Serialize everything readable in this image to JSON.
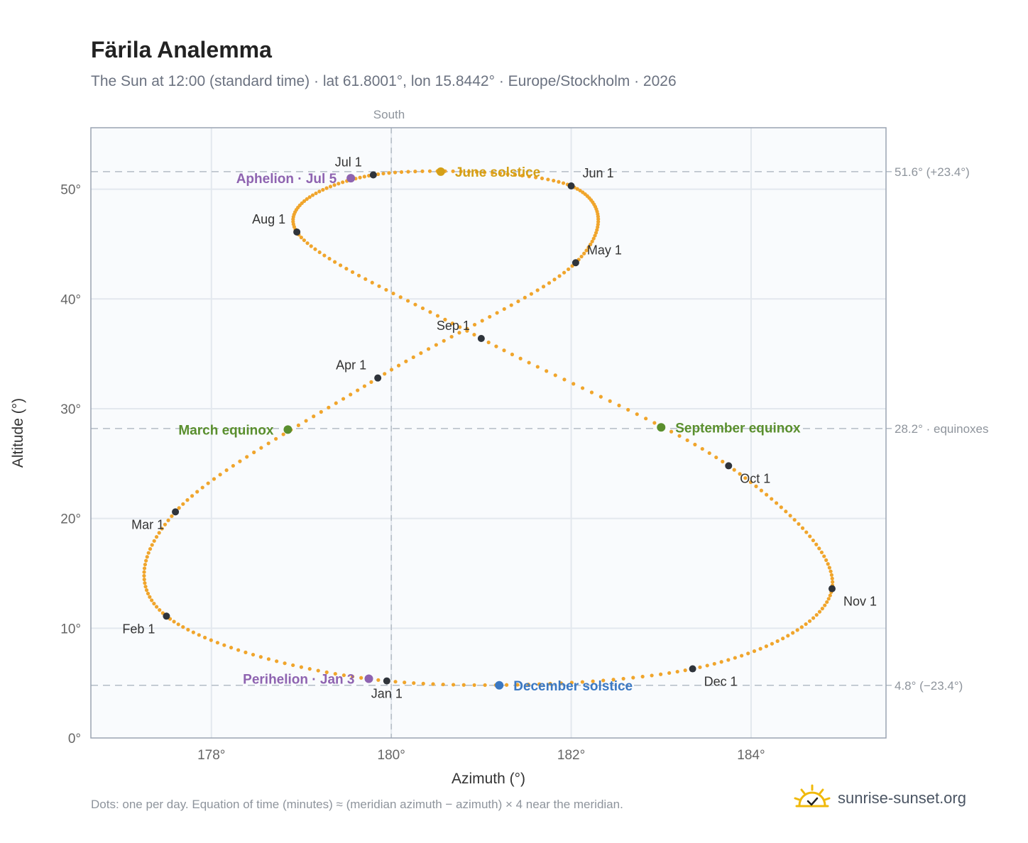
{
  "title": "Färila Analemma",
  "subtitle": "The Sun at 12:00 (standard time) · lat 61.8001°, lon 15.8442° · Europe/Stockholm · 2026",
  "footer_note": "Dots: one per day. Equation of time (minutes) ≈ (meridian azimuth − azimuth) × 4 near the meridian.",
  "brand": {
    "name": "sunrise-sunset.org",
    "icon": "sun-icon",
    "color": "#f0b90b"
  },
  "chart_data": {
    "type": "scatter",
    "title": "Färila Analemma",
    "xlabel": "Azimuth (°)",
    "ylabel": "Altitude (°)",
    "xlim": [
      176.66,
      185.5
    ],
    "ylim": [
      0,
      55.6
    ],
    "xticks": [
      178,
      180,
      182,
      184
    ],
    "xtick_labels": [
      "178°",
      "180°",
      "182°",
      "184°"
    ],
    "yticks": [
      0,
      10,
      20,
      30,
      40,
      50
    ],
    "ytick_labels": [
      "0°",
      "10°",
      "20°",
      "30°",
      "40°",
      "50°"
    ],
    "grid": true,
    "meridian": {
      "x": 180,
      "label": "South"
    },
    "reference_lines": [
      {
        "y": 51.6,
        "label": "51.6° (+23.4°)"
      },
      {
        "y": 28.2,
        "label": "28.2° · equinoxes"
      },
      {
        "y": 4.8,
        "label": "4.8° (−23.4°)"
      }
    ],
    "series": [
      {
        "style": "daily dots",
        "color": "#f0a52c",
        "path": [
          {
            "date": "Jan 1",
            "azimuth": 179.95,
            "altitude": 5.2
          },
          {
            "date": "Feb 1",
            "azimuth": 177.5,
            "altitude": 11.1
          },
          {
            "date": "Mar 1",
            "azimuth": 177.6,
            "altitude": 20.6
          },
          {
            "date": "Apr 1",
            "azimuth": 179.85,
            "altitude": 32.8
          },
          {
            "date": "May 1",
            "azimuth": 182.05,
            "altitude": 43.3
          },
          {
            "date": "Jun 1",
            "azimuth": 182.0,
            "altitude": 50.3
          },
          {
            "date": "Jul 1",
            "azimuth": 179.8,
            "altitude": 51.3
          },
          {
            "date": "Aug 1",
            "azimuth": 178.95,
            "altitude": 46.1
          },
          {
            "date": "Sep 1",
            "azimuth": 181.0,
            "altitude": 36.4
          },
          {
            "date": "Oct 1",
            "azimuth": 183.75,
            "altitude": 24.8
          },
          {
            "date": "Nov 1",
            "azimuth": 184.9,
            "altitude": 13.6
          },
          {
            "date": "Dec 1",
            "azimuth": 183.35,
            "altitude": 6.3
          }
        ]
      }
    ],
    "month_markers": [
      {
        "label": "Jan 1",
        "azimuth": 179.95,
        "altitude": 5.2,
        "label_pos": "below"
      },
      {
        "label": "Feb 1",
        "azimuth": 177.5,
        "altitude": 11.1,
        "label_pos": "left-below"
      },
      {
        "label": "Mar 1",
        "azimuth": 177.6,
        "altitude": 20.6,
        "label_pos": "left-below"
      },
      {
        "label": "Apr 1",
        "azimuth": 179.85,
        "altitude": 32.8,
        "label_pos": "left-above"
      },
      {
        "label": "May 1",
        "azimuth": 182.05,
        "altitude": 43.3,
        "label_pos": "right-above"
      },
      {
        "label": "Jun 1",
        "azimuth": 182.0,
        "altitude": 50.3,
        "label_pos": "right-above"
      },
      {
        "label": "Jul 1",
        "azimuth": 179.8,
        "altitude": 51.3,
        "label_pos": "left-above"
      },
      {
        "label": "Aug 1",
        "azimuth": 178.95,
        "altitude": 46.1,
        "label_pos": "left-above"
      },
      {
        "label": "Sep 1",
        "azimuth": 181.0,
        "altitude": 36.4,
        "label_pos": "left-above"
      },
      {
        "label": "Oct 1",
        "azimuth": 183.75,
        "altitude": 24.8,
        "label_pos": "right-below"
      },
      {
        "label": "Nov 1",
        "azimuth": 184.9,
        "altitude": 13.6,
        "label_pos": "right-below"
      },
      {
        "label": "Dec 1",
        "azimuth": 183.35,
        "altitude": 6.3,
        "label_pos": "right-below"
      }
    ],
    "events": [
      {
        "label": "June solstice",
        "azimuth": 180.55,
        "altitude": 51.6,
        "color": "#d4a017",
        "label_pos": "right"
      },
      {
        "label": "March equinox",
        "azimuth": 178.85,
        "altitude": 28.1,
        "color": "#5a8f2e",
        "label_pos": "left"
      },
      {
        "label": "September equinox",
        "azimuth": 183.0,
        "altitude": 28.3,
        "color": "#5a8f2e",
        "label_pos": "right"
      },
      {
        "label": "December solstice",
        "azimuth": 181.2,
        "altitude": 4.8,
        "color": "#3b78c2",
        "label_pos": "right"
      },
      {
        "label": "Aphelion · Jul 5",
        "azimuth": 179.55,
        "altitude": 51.0,
        "color": "#8e63b0",
        "label_pos": "left"
      },
      {
        "label": "Perihelion · Jan 3",
        "azimuth": 179.75,
        "altitude": 5.4,
        "color": "#8e63b0",
        "label_pos": "left"
      }
    ]
  }
}
